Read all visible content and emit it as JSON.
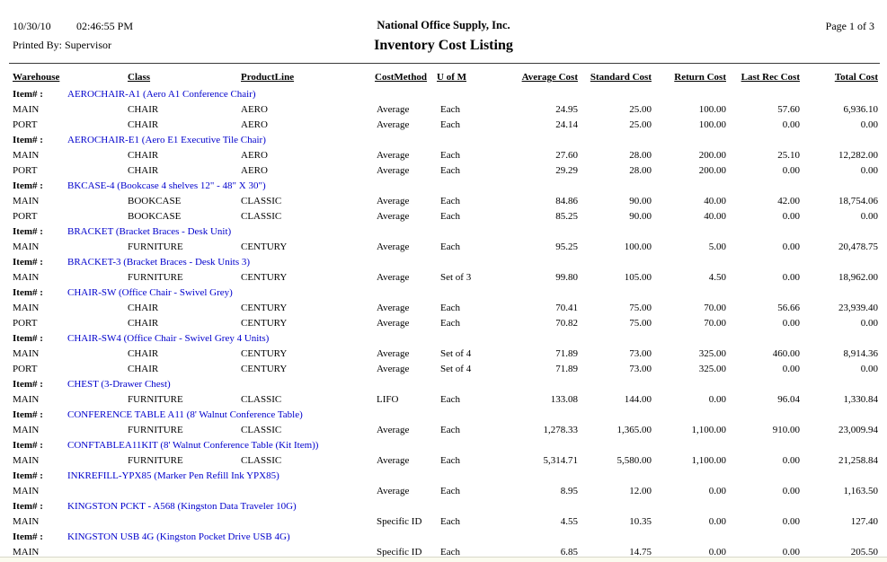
{
  "header": {
    "date": "10/30/10",
    "time": "02:46:55 PM",
    "printed_by": "Printed By: Supervisor",
    "company": "National Office Supply, Inc.",
    "title": "Inventory Cost Listing",
    "page": "Page 1 of 3"
  },
  "table": {
    "item_label": "Item# :",
    "columns": [
      "Warehouse",
      "Class",
      "ProductLine",
      "CostMethod",
      "U of M",
      "Average Cost",
      "Standard Cost",
      "Return Cost",
      "Last Rec Cost",
      "Total Cost"
    ],
    "groups": [
      {
        "item": "AEROCHAIR-A1 (Aero A1 Conference Chair)",
        "rows": [
          {
            "warehouse": "MAIN",
            "class": "CHAIR",
            "product_line": "AERO",
            "cost_method": "Average",
            "uom": "Each",
            "average_cost": "24.95",
            "standard_cost": "25.00",
            "return_cost": "100.00",
            "last_rec_cost": "57.60",
            "total_cost": "6,936.10"
          },
          {
            "warehouse": "PORT",
            "class": "CHAIR",
            "product_line": "AERO",
            "cost_method": "Average",
            "uom": "Each",
            "average_cost": "24.14",
            "standard_cost": "25.00",
            "return_cost": "100.00",
            "last_rec_cost": "0.00",
            "total_cost": "0.00"
          }
        ]
      },
      {
        "item": "AEROCHAIR-E1 (Aero E1 Executive Tile Chair)",
        "rows": [
          {
            "warehouse": "MAIN",
            "class": "CHAIR",
            "product_line": "AERO",
            "cost_method": "Average",
            "uom": "Each",
            "average_cost": "27.60",
            "standard_cost": "28.00",
            "return_cost": "200.00",
            "last_rec_cost": "25.10",
            "total_cost": "12,282.00"
          },
          {
            "warehouse": "PORT",
            "class": "CHAIR",
            "product_line": "AERO",
            "cost_method": "Average",
            "uom": "Each",
            "average_cost": "29.29",
            "standard_cost": "28.00",
            "return_cost": "200.00",
            "last_rec_cost": "0.00",
            "total_cost": "0.00"
          }
        ]
      },
      {
        "item": "BKCASE-4 (Bookcase 4 shelves 12\" - 48\" X 30\")",
        "rows": [
          {
            "warehouse": "MAIN",
            "class": "BOOKCASE",
            "product_line": "CLASSIC",
            "cost_method": "Average",
            "uom": "Each",
            "average_cost": "84.86",
            "standard_cost": "90.00",
            "return_cost": "40.00",
            "last_rec_cost": "42.00",
            "total_cost": "18,754.06"
          },
          {
            "warehouse": "PORT",
            "class": "BOOKCASE",
            "product_line": "CLASSIC",
            "cost_method": "Average",
            "uom": "Each",
            "average_cost": "85.25",
            "standard_cost": "90.00",
            "return_cost": "40.00",
            "last_rec_cost": "0.00",
            "total_cost": "0.00"
          }
        ]
      },
      {
        "item": "BRACKET (Bracket Braces - Desk Unit)",
        "rows": [
          {
            "warehouse": "MAIN",
            "class": "FURNITURE",
            "product_line": "CENTURY",
            "cost_method": "Average",
            "uom": "Each",
            "average_cost": "95.25",
            "standard_cost": "100.00",
            "return_cost": "5.00",
            "last_rec_cost": "0.00",
            "total_cost": "20,478.75"
          }
        ]
      },
      {
        "item": "BRACKET-3 (Bracket Braces - Desk Units 3)",
        "rows": [
          {
            "warehouse": "MAIN",
            "class": "FURNITURE",
            "product_line": "CENTURY",
            "cost_method": "Average",
            "uom": "Set of 3",
            "average_cost": "99.80",
            "standard_cost": "105.00",
            "return_cost": "4.50",
            "last_rec_cost": "0.00",
            "total_cost": "18,962.00"
          }
        ]
      },
      {
        "item": "CHAIR-SW (Office Chair - Swivel Grey)",
        "rows": [
          {
            "warehouse": "MAIN",
            "class": "CHAIR",
            "product_line": "CENTURY",
            "cost_method": "Average",
            "uom": "Each",
            "average_cost": "70.41",
            "standard_cost": "75.00",
            "return_cost": "70.00",
            "last_rec_cost": "56.66",
            "total_cost": "23,939.40"
          },
          {
            "warehouse": "PORT",
            "class": "CHAIR",
            "product_line": "CENTURY",
            "cost_method": "Average",
            "uom": "Each",
            "average_cost": "70.82",
            "standard_cost": "75.00",
            "return_cost": "70.00",
            "last_rec_cost": "0.00",
            "total_cost": "0.00"
          }
        ]
      },
      {
        "item": "CHAIR-SW4 (Office Chair - Swivel Grey 4 Units)",
        "rows": [
          {
            "warehouse": "MAIN",
            "class": "CHAIR",
            "product_line": "CENTURY",
            "cost_method": "Average",
            "uom": "Set of 4",
            "average_cost": "71.89",
            "standard_cost": "73.00",
            "return_cost": "325.00",
            "last_rec_cost": "460.00",
            "total_cost": "8,914.36"
          },
          {
            "warehouse": "PORT",
            "class": "CHAIR",
            "product_line": "CENTURY",
            "cost_method": "Average",
            "uom": "Set of 4",
            "average_cost": "71.89",
            "standard_cost": "73.00",
            "return_cost": "325.00",
            "last_rec_cost": "0.00",
            "total_cost": "0.00"
          }
        ]
      },
      {
        "item": "CHEST (3-Drawer Chest)",
        "rows": [
          {
            "warehouse": "MAIN",
            "class": "FURNITURE",
            "product_line": "CLASSIC",
            "cost_method": "LIFO",
            "uom": "Each",
            "average_cost": "133.08",
            "standard_cost": "144.00",
            "return_cost": "0.00",
            "last_rec_cost": "96.04",
            "total_cost": "1,330.84"
          }
        ]
      },
      {
        "item": "CONFERENCE TABLE A11 (8' Walnut Conference Table)",
        "rows": [
          {
            "warehouse": "MAIN",
            "class": "FURNITURE",
            "product_line": "CLASSIC",
            "cost_method": "Average",
            "uom": "Each",
            "average_cost": "1,278.33",
            "standard_cost": "1,365.00",
            "return_cost": "1,100.00",
            "last_rec_cost": "910.00",
            "total_cost": "23,009.94"
          }
        ]
      },
      {
        "item": "CONFTABLEA11KIT (8' Walnut Conference Table (Kit Item))",
        "rows": [
          {
            "warehouse": "MAIN",
            "class": "FURNITURE",
            "product_line": "CLASSIC",
            "cost_method": "Average",
            "uom": "Each",
            "average_cost": "5,314.71",
            "standard_cost": "5,580.00",
            "return_cost": "1,100.00",
            "last_rec_cost": "0.00",
            "total_cost": "21,258.84"
          }
        ]
      },
      {
        "item": "INKREFILL-YPX85 (Marker Pen Refill Ink YPX85)",
        "rows": [
          {
            "warehouse": "MAIN",
            "class": "",
            "product_line": "",
            "cost_method": "Average",
            "uom": "Each",
            "average_cost": "8.95",
            "standard_cost": "12.00",
            "return_cost": "0.00",
            "last_rec_cost": "0.00",
            "total_cost": "1,163.50"
          }
        ]
      },
      {
        "item": "KINGSTON PCKT - A568 (Kingston Data Traveler 10G)",
        "rows": [
          {
            "warehouse": "MAIN",
            "class": "",
            "product_line": "",
            "cost_method": "Specific ID",
            "uom": "Each",
            "average_cost": "4.55",
            "standard_cost": "10.35",
            "return_cost": "0.00",
            "last_rec_cost": "0.00",
            "total_cost": "127.40"
          }
        ]
      },
      {
        "item": "KINGSTON USB 4G (Kingston Pocket Drive USB 4G)",
        "rows": [
          {
            "warehouse": "MAIN",
            "class": "",
            "product_line": "",
            "cost_method": "Specific ID",
            "uom": "Each",
            "average_cost": "6.85",
            "standard_cost": "14.75",
            "return_cost": "0.00",
            "last_rec_cost": "0.00",
            "total_cost": "205.50"
          }
        ]
      }
    ]
  },
  "colors": {
    "link_blue": "#0000CC",
    "text": "#000000"
  }
}
